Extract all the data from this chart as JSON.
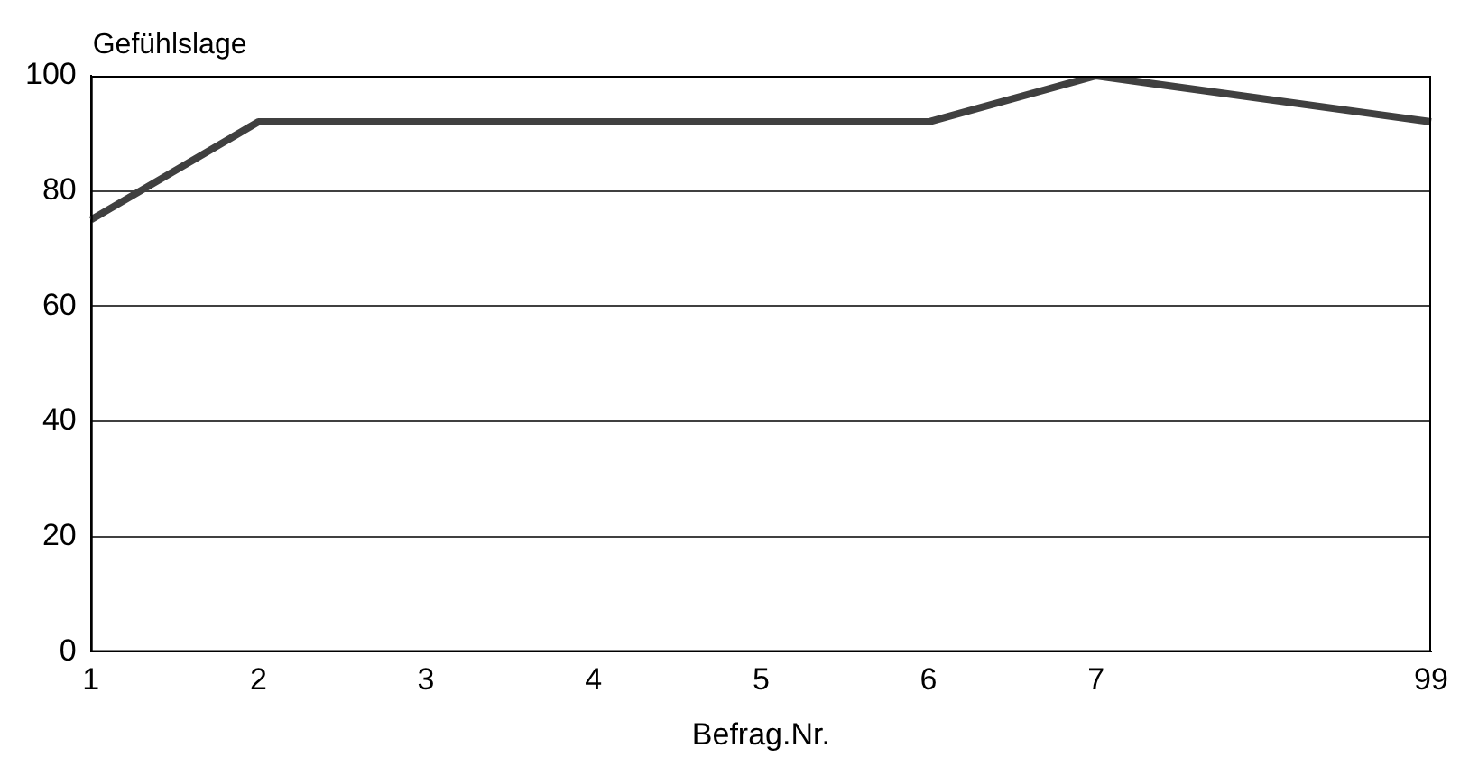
{
  "chart_data": {
    "type": "line",
    "ylabel": "Gefühlslage",
    "xlabel": "Befrag.Nr.",
    "categories": [
      "1",
      "2",
      "3",
      "4",
      "5",
      "6",
      "7",
      null,
      "99"
    ],
    "series": [
      {
        "color": "#404040",
        "values": [
          75,
          92,
          92,
          92,
          92,
          92,
          100,
          96,
          92
        ]
      }
    ],
    "ylim": [
      0,
      100
    ],
    "yticks": [
      0,
      20,
      40,
      60,
      80,
      100
    ],
    "grid": "y",
    "legend": false,
    "marker": "none",
    "line_style": "solid"
  }
}
